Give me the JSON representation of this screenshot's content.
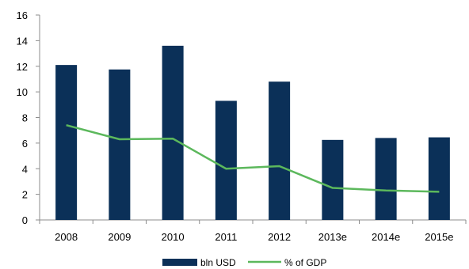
{
  "chart_data": {
    "type": "bar",
    "title": "",
    "xlabel": "",
    "ylabel": "",
    "ylim": [
      0,
      16
    ],
    "yticks": [
      0,
      2,
      4,
      6,
      8,
      10,
      12,
      14,
      16
    ],
    "grid": false,
    "categories": [
      "2008",
      "2009",
      "2010",
      "2011",
      "2012",
      "2013e",
      "2014e",
      "2015e"
    ],
    "series": [
      {
        "name": "bln USD",
        "type": "bar",
        "color": "#0b3058",
        "values": [
          12.1,
          11.75,
          13.6,
          9.3,
          10.8,
          6.25,
          6.4,
          6.45
        ]
      },
      {
        "name": "% of GDP",
        "type": "line",
        "color": "#5cb85c",
        "values": [
          7.4,
          6.3,
          6.35,
          4.0,
          4.2,
          2.5,
          2.3,
          2.2
        ]
      }
    ],
    "legend": {
      "placement": "bottom"
    }
  }
}
